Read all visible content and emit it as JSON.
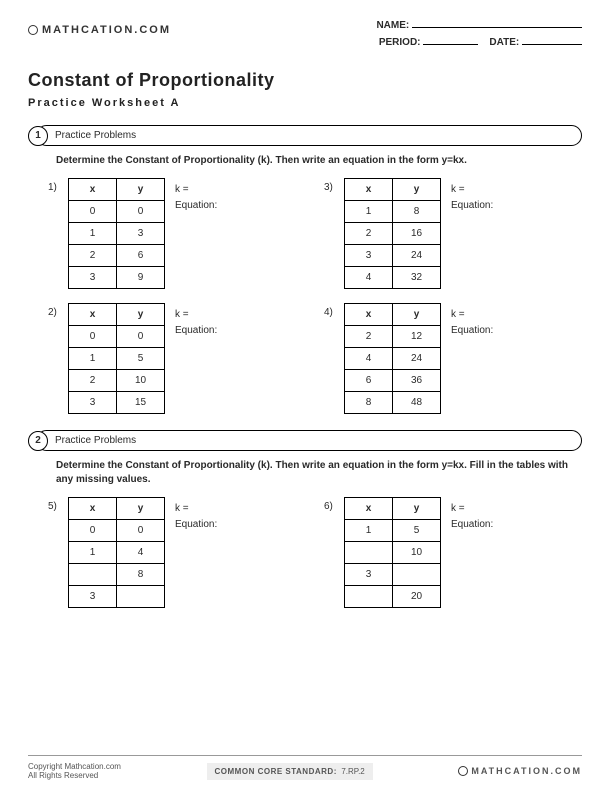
{
  "brand": "MATHCATION.COM",
  "header": {
    "name": "NAME:",
    "period": "PERIOD:",
    "date": "DATE:"
  },
  "title": "Constant of Proportionality",
  "subtitle": "Practice Worksheet A",
  "section1": {
    "num": "1",
    "label": "Practice Problems",
    "instruction": "Determine the Constant of Proportionality (k).  Then write an equation in the form y=kx."
  },
  "section2": {
    "num": "2",
    "label": "Practice Problems",
    "instruction": "Determine the Constant of Proportionality (k).  Then write an equation in the form y=kx. Fill in the tables with any missing values."
  },
  "table_headers": {
    "x": "x",
    "y": "y"
  },
  "side": {
    "k": "k =",
    "eq": "Equation:"
  },
  "problems": {
    "p1": {
      "num": "1)",
      "rows": [
        [
          "0",
          "0"
        ],
        [
          "1",
          "3"
        ],
        [
          "2",
          "6"
        ],
        [
          "3",
          "9"
        ]
      ]
    },
    "p2": {
      "num": "2)",
      "rows": [
        [
          "0",
          "0"
        ],
        [
          "1",
          "5"
        ],
        [
          "2",
          "10"
        ],
        [
          "3",
          "15"
        ]
      ]
    },
    "p3": {
      "num": "3)",
      "rows": [
        [
          "1",
          "8"
        ],
        [
          "2",
          "16"
        ],
        [
          "3",
          "24"
        ],
        [
          "4",
          "32"
        ]
      ]
    },
    "p4": {
      "num": "4)",
      "rows": [
        [
          "2",
          "12"
        ],
        [
          "4",
          "24"
        ],
        [
          "6",
          "36"
        ],
        [
          "8",
          "48"
        ]
      ]
    },
    "p5": {
      "num": "5)",
      "rows": [
        [
          "0",
          "0"
        ],
        [
          "1",
          "4"
        ],
        [
          "",
          "8"
        ],
        [
          "3",
          ""
        ]
      ]
    },
    "p6": {
      "num": "6)",
      "rows": [
        [
          "1",
          "5"
        ],
        [
          "",
          "10"
        ],
        [
          "3",
          ""
        ],
        [
          "",
          "20"
        ]
      ]
    }
  },
  "footer": {
    "copyright": "Copyright Mathcation.com",
    "rights": "All Rights Reserved",
    "cc_label": "COMMON CORE STANDARD:",
    "cc_code": "7.RP.2"
  }
}
